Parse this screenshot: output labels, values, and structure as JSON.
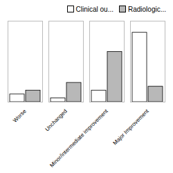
{
  "chart_data": {
    "type": "bar",
    "categories": [
      "Worse",
      "Unchanged",
      "Minor/intermediate improvement",
      "Major Improvement"
    ],
    "series": [
      {
        "name": "Clinical ou...",
        "color": "#ffffff",
        "values": [
          2,
          1,
          3,
          18
        ]
      },
      {
        "name": "Radiologic...",
        "color": "#b8b8b8",
        "values": [
          3,
          5,
          13,
          4
        ]
      }
    ],
    "ylim": [
      0,
      21
    ],
    "tick_labels": "x",
    "legend": "upper right"
  }
}
